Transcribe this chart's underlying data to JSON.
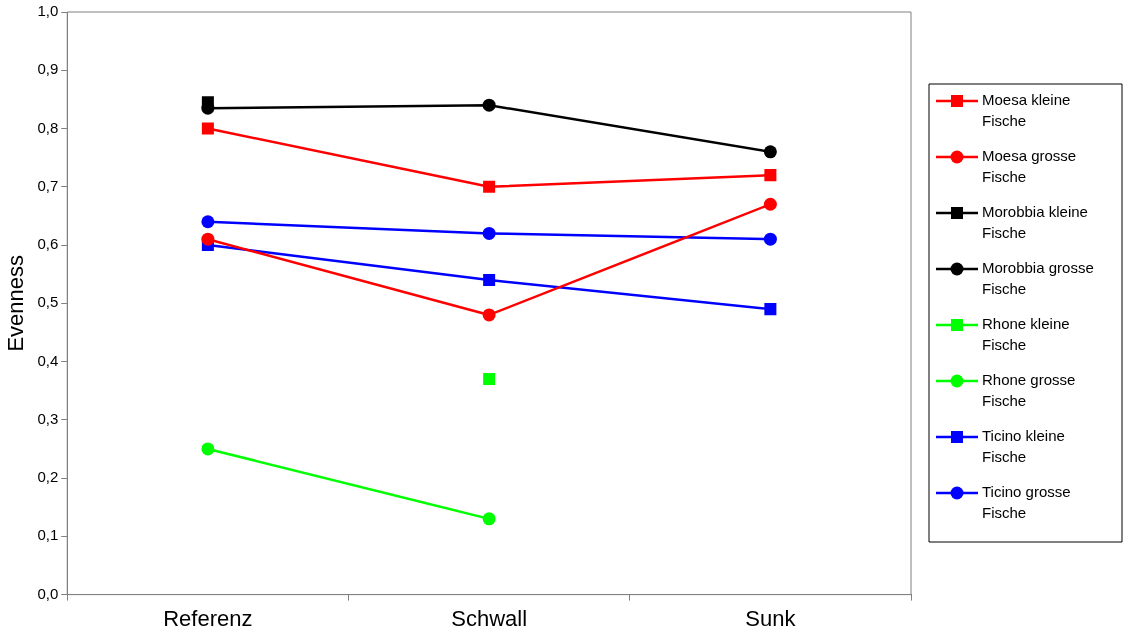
{
  "chart_data": {
    "type": "line",
    "ylabel": "Evenness",
    "categories": [
      "Referenz",
      "Schwall",
      "Sunk"
    ],
    "ylim": [
      0,
      1
    ],
    "yticks": [
      {
        "value": 0,
        "label": "0,0"
      },
      {
        "value": 0.1,
        "label": "0,1"
      },
      {
        "value": 0.2,
        "label": "0,2"
      },
      {
        "value": 0.3,
        "label": "0,3"
      },
      {
        "value": 0.4,
        "label": "0,4"
      },
      {
        "value": 0.5,
        "label": "0,5"
      },
      {
        "value": 0.6,
        "label": "0,6"
      },
      {
        "value": 0.7,
        "label": "0,7"
      },
      {
        "value": 0.8,
        "label": "0,8"
      },
      {
        "value": 0.9,
        "label": "0,9"
      },
      {
        "value": 1,
        "label": "1,0"
      }
    ],
    "grid": false,
    "legend": "right",
    "line_style": "solid",
    "series": [
      {
        "name": "Moesa kleine Fische",
        "color": "#ff0000",
        "marker": "square",
        "values": [
          0.8,
          0.7,
          0.72
        ]
      },
      {
        "name": "Moesa grosse Fische",
        "color": "#ff0000",
        "marker": "circle",
        "values": [
          0.61,
          0.48,
          0.67
        ]
      },
      {
        "name": "Morobbia kleine Fische",
        "color": "#000000",
        "marker": "square",
        "values": [
          0.845,
          null,
          null
        ]
      },
      {
        "name": "Morobbia grosse Fische",
        "color": "#000000",
        "marker": "circle",
        "values": [
          0.835,
          0.84,
          0.76
        ]
      },
      {
        "name": "Rhone kleine Fische",
        "color": "#00ff00",
        "marker": "square",
        "values": [
          null,
          0.37,
          null
        ]
      },
      {
        "name": "Rhone grosse Fische",
        "color": "#00ff00",
        "marker": "circle",
        "values": [
          0.25,
          0.13,
          null
        ]
      },
      {
        "name": "Ticino kleine Fische",
        "color": "#0000ff",
        "marker": "square",
        "values": [
          0.6,
          0.54,
          0.49
        ]
      },
      {
        "name": "Ticino grosse Fische",
        "color": "#0000ff",
        "marker": "circle",
        "values": [
          0.64,
          0.62,
          0.61
        ]
      }
    ]
  }
}
